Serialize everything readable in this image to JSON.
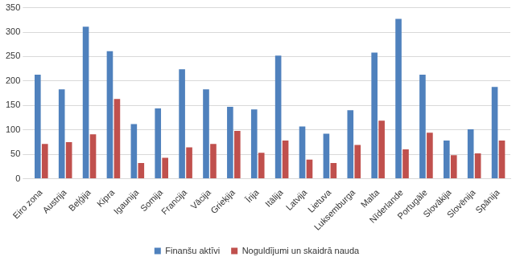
{
  "chart_data": {
    "type": "bar",
    "categories": [
      "Eiro zona",
      "Austrija",
      "Beļģija",
      "Kipra",
      "Igaunija",
      "Somija",
      "Francija",
      "Vācija",
      "Grieķija",
      "Īrija",
      "Itālija",
      "Latvija",
      "Lietuva",
      "Luksemburga",
      "Malta",
      "Nīderlande",
      "Portugāle",
      "Slovākija",
      "Slovēnija",
      "Spānija"
    ],
    "series": [
      {
        "name": "Finanšu aktīvi",
        "color": "#4f81bd",
        "values": [
          213,
          183,
          311,
          261,
          112,
          144,
          224,
          183,
          147,
          142,
          252,
          107,
          92,
          140,
          258,
          327,
          213,
          78,
          101,
          188
        ]
      },
      {
        "name": "Noguldījumi un skaidrā nauda",
        "color": "#c0504d",
        "values": [
          71,
          75,
          91,
          163,
          32,
          43,
          64,
          71,
          98,
          53,
          78,
          39,
          32,
          69,
          119,
          60,
          94,
          48,
          52,
          78
        ]
      }
    ],
    "ylim": [
      0,
      350
    ],
    "yticks": [
      0,
      50,
      100,
      150,
      200,
      250,
      300,
      350
    ],
    "grid": true,
    "legend": "bottom"
  }
}
